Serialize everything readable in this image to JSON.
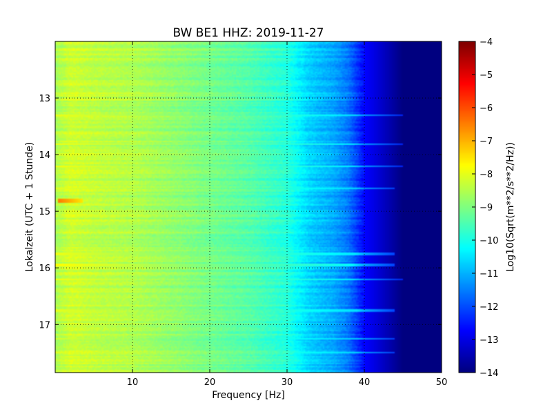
{
  "chart_data": {
    "type": "heatmap",
    "title": "BW BE1 HHZ: 2019-11-27",
    "xlabel": "Frequency [Hz]",
    "ylabel": "Lokalzeit (UTC + 1 Stunde)",
    "xlim": [
      0,
      50
    ],
    "ylim": [
      12.0,
      17.85
    ],
    "y_inverted": true,
    "x_ticks": [
      "10",
      "20",
      "30",
      "40",
      "50"
    ],
    "x_tick_values": [
      10,
      20,
      30,
      40,
      50
    ],
    "y_ticks": [
      "13",
      "14",
      "15",
      "16",
      "17"
    ],
    "y_tick_values": [
      13,
      14,
      15,
      16,
      17
    ],
    "grid": true,
    "colorbar": {
      "label": "Log10(Sqrt(m**2/s**2/Hz))",
      "range": [
        -14,
        -4
      ],
      "ticks": [
        "−4",
        "−5",
        "−6",
        "−7",
        "−8",
        "−9",
        "−10",
        "−11",
        "−12",
        "−13",
        "−14"
      ],
      "tick_values": [
        -4,
        -5,
        -6,
        -7,
        -8,
        -9,
        -10,
        -11,
        -12,
        -13,
        -14
      ],
      "colormap": "jet"
    },
    "frequency_profile": {
      "frequency_hz": [
        0,
        2,
        4,
        6,
        10,
        15,
        20,
        25,
        30,
        33,
        36,
        38,
        40,
        42,
        45,
        50
      ],
      "log10_amplitude": [
        -8.6,
        -8.2,
        -8.3,
        -8.4,
        -8.5,
        -8.8,
        -9.1,
        -9.4,
        -9.9,
        -10.7,
        -11.1,
        -11.6,
        -12.7,
        -13.2,
        -14,
        -14
      ]
    },
    "transient_bands": [
      {
        "time": 13.3,
        "log10_amplitude": -7.9,
        "max_freq_hz": 45
      },
      {
        "time": 13.82,
        "log10_amplitude": -7.8,
        "max_freq_hz": 45
      },
      {
        "time": 14.2,
        "log10_amplitude": -7.8,
        "max_freq_hz": 45
      },
      {
        "time": 14.6,
        "log10_amplitude": -8.0,
        "max_freq_hz": 44
      },
      {
        "time": 15.75,
        "log10_amplitude": -7.9,
        "max_freq_hz": 44
      },
      {
        "time": 15.95,
        "log10_amplitude": -7.7,
        "max_freq_hz": 44
      },
      {
        "time": 16.2,
        "log10_amplitude": -7.8,
        "max_freq_hz": 45
      },
      {
        "time": 16.75,
        "log10_amplitude": -8.0,
        "max_freq_hz": 44
      },
      {
        "time": 17.25,
        "log10_amplitude": -8.1,
        "max_freq_hz": 44
      },
      {
        "time": 17.5,
        "log10_amplitude": -8.0,
        "max_freq_hz": 44
      }
    ],
    "hot_spot": {
      "time": 14.82,
      "freq_range_hz": [
        0.3,
        3.5
      ],
      "log10_amplitude": -6.4
    }
  }
}
